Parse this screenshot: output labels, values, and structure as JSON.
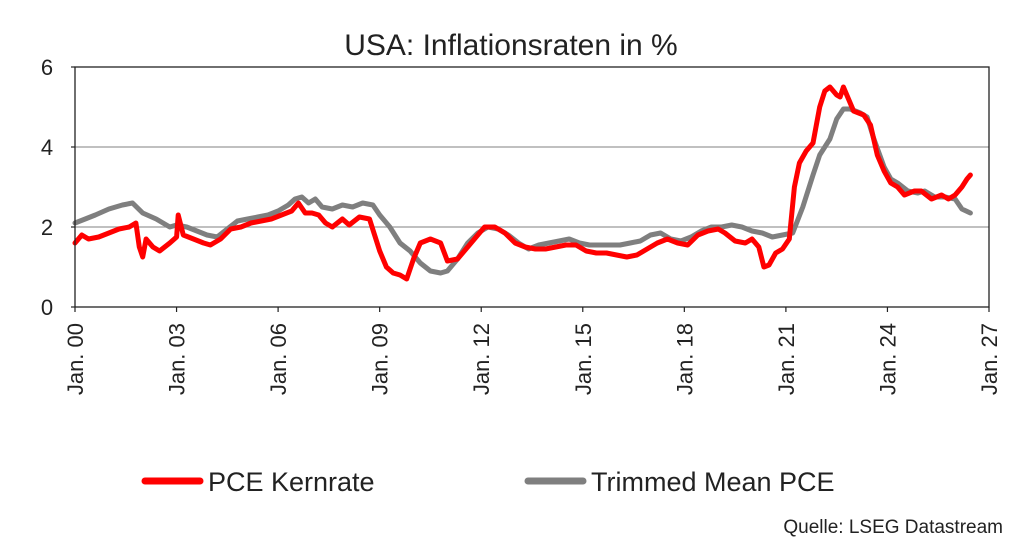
{
  "chart_data": {
    "type": "line",
    "title": "USA: Inflationsraten in %",
    "source": "Quelle: LSEG Datastream",
    "xlabel": "",
    "ylabel": "",
    "ylim": [
      0,
      6
    ],
    "y_ticks": [
      0,
      2,
      4,
      6
    ],
    "xlim": [
      2000.0,
      2027.0
    ],
    "x_ticks": [
      {
        "value": 2000,
        "label": "Jan. 00"
      },
      {
        "value": 2003,
        "label": "Jan. 03"
      },
      {
        "value": 2006,
        "label": "Jan. 06"
      },
      {
        "value": 2009,
        "label": "Jan. 09"
      },
      {
        "value": 2012,
        "label": "Jan. 12"
      },
      {
        "value": 2015,
        "label": "Jan. 15"
      },
      {
        "value": 2018,
        "label": "Jan. 18"
      },
      {
        "value": 2021,
        "label": "Jan. 21"
      },
      {
        "value": 2024,
        "label": "Jan. 24"
      },
      {
        "value": 2027,
        "label": "Jan. 27"
      }
    ],
    "grid": true,
    "legend_position": "bottom",
    "series": [
      {
        "name": "PCE Kernrate",
        "color": "#ff0000",
        "points": [
          [
            2000.0,
            1.6
          ],
          [
            2000.2,
            1.8
          ],
          [
            2000.4,
            1.7
          ],
          [
            2000.7,
            1.75
          ],
          [
            2001.0,
            1.85
          ],
          [
            2001.3,
            1.95
          ],
          [
            2001.6,
            2.0
          ],
          [
            2001.8,
            2.1
          ],
          [
            2001.9,
            1.5
          ],
          [
            2002.0,
            1.25
          ],
          [
            2002.1,
            1.7
          ],
          [
            2002.3,
            1.5
          ],
          [
            2002.5,
            1.4
          ],
          [
            2002.8,
            1.6
          ],
          [
            2003.0,
            1.75
          ],
          [
            2003.05,
            2.3
          ],
          [
            2003.2,
            1.8
          ],
          [
            2003.5,
            1.7
          ],
          [
            2003.8,
            1.6
          ],
          [
            2004.0,
            1.55
          ],
          [
            2004.3,
            1.7
          ],
          [
            2004.6,
            1.95
          ],
          [
            2004.9,
            2.0
          ],
          [
            2005.2,
            2.1
          ],
          [
            2005.5,
            2.15
          ],
          [
            2005.8,
            2.2
          ],
          [
            2006.1,
            2.3
          ],
          [
            2006.4,
            2.4
          ],
          [
            2006.6,
            2.6
          ],
          [
            2006.8,
            2.35
          ],
          [
            2007.0,
            2.35
          ],
          [
            2007.2,
            2.3
          ],
          [
            2007.4,
            2.1
          ],
          [
            2007.6,
            2.0
          ],
          [
            2007.9,
            2.2
          ],
          [
            2008.1,
            2.05
          ],
          [
            2008.4,
            2.25
          ],
          [
            2008.7,
            2.2
          ],
          [
            2008.85,
            1.8
          ],
          [
            2009.0,
            1.4
          ],
          [
            2009.2,
            1.0
          ],
          [
            2009.4,
            0.85
          ],
          [
            2009.6,
            0.8
          ],
          [
            2009.8,
            0.7
          ],
          [
            2010.0,
            1.2
          ],
          [
            2010.2,
            1.6
          ],
          [
            2010.5,
            1.7
          ],
          [
            2010.8,
            1.6
          ],
          [
            2011.0,
            1.15
          ],
          [
            2011.3,
            1.2
          ],
          [
            2011.6,
            1.5
          ],
          [
            2011.9,
            1.8
          ],
          [
            2012.1,
            2.0
          ],
          [
            2012.4,
            2.0
          ],
          [
            2012.7,
            1.85
          ],
          [
            2013.0,
            1.6
          ],
          [
            2013.3,
            1.5
          ],
          [
            2013.6,
            1.45
          ],
          [
            2013.9,
            1.45
          ],
          [
            2014.2,
            1.5
          ],
          [
            2014.5,
            1.55
          ],
          [
            2014.8,
            1.55
          ],
          [
            2015.1,
            1.4
          ],
          [
            2015.4,
            1.35
          ],
          [
            2015.7,
            1.35
          ],
          [
            2016.0,
            1.3
          ],
          [
            2016.3,
            1.25
          ],
          [
            2016.6,
            1.3
          ],
          [
            2016.9,
            1.45
          ],
          [
            2017.2,
            1.6
          ],
          [
            2017.5,
            1.7
          ],
          [
            2017.8,
            1.6
          ],
          [
            2018.1,
            1.55
          ],
          [
            2018.4,
            1.8
          ],
          [
            2018.7,
            1.9
          ],
          [
            2019.0,
            1.95
          ],
          [
            2019.2,
            1.85
          ],
          [
            2019.5,
            1.65
          ],
          [
            2019.8,
            1.6
          ],
          [
            2020.0,
            1.7
          ],
          [
            2020.2,
            1.5
          ],
          [
            2020.35,
            1.0
          ],
          [
            2020.5,
            1.05
          ],
          [
            2020.7,
            1.35
          ],
          [
            2020.9,
            1.45
          ],
          [
            2021.1,
            1.7
          ],
          [
            2021.25,
            3.0
          ],
          [
            2021.4,
            3.6
          ],
          [
            2021.6,
            3.9
          ],
          [
            2021.8,
            4.1
          ],
          [
            2022.0,
            5.0
          ],
          [
            2022.15,
            5.4
          ],
          [
            2022.3,
            5.5
          ],
          [
            2022.5,
            5.3
          ],
          [
            2022.6,
            5.25
          ],
          [
            2022.7,
            5.5
          ],
          [
            2022.85,
            5.2
          ],
          [
            2023.0,
            4.9
          ],
          [
            2023.3,
            4.8
          ],
          [
            2023.5,
            4.55
          ],
          [
            2023.7,
            3.8
          ],
          [
            2023.9,
            3.4
          ],
          [
            2024.1,
            3.1
          ],
          [
            2024.3,
            3.0
          ],
          [
            2024.5,
            2.8
          ],
          [
            2024.8,
            2.9
          ],
          [
            2025.0,
            2.9
          ],
          [
            2025.3,
            2.7
          ],
          [
            2025.6,
            2.8
          ],
          [
            2025.8,
            2.7
          ],
          [
            2026.0,
            2.8
          ],
          [
            2026.2,
            3.0
          ],
          [
            2026.35,
            3.2
          ],
          [
            2026.45,
            3.3
          ]
        ]
      },
      {
        "name": "Trimmed Mean PCE",
        "color": "#7f7f7f",
        "points": [
          [
            2000.0,
            2.1
          ],
          [
            2000.3,
            2.2
          ],
          [
            2000.6,
            2.3
          ],
          [
            2001.0,
            2.45
          ],
          [
            2001.4,
            2.55
          ],
          [
            2001.7,
            2.6
          ],
          [
            2002.0,
            2.35
          ],
          [
            2002.4,
            2.2
          ],
          [
            2002.8,
            2.0
          ],
          [
            2003.0,
            2.05
          ],
          [
            2003.3,
            2.0
          ],
          [
            2003.6,
            1.9
          ],
          [
            2003.9,
            1.8
          ],
          [
            2004.2,
            1.75
          ],
          [
            2004.5,
            1.95
          ],
          [
            2004.8,
            2.15
          ],
          [
            2005.1,
            2.2
          ],
          [
            2005.4,
            2.25
          ],
          [
            2005.7,
            2.3
          ],
          [
            2006.0,
            2.4
          ],
          [
            2006.3,
            2.55
          ],
          [
            2006.5,
            2.7
          ],
          [
            2006.7,
            2.75
          ],
          [
            2006.9,
            2.6
          ],
          [
            2007.1,
            2.7
          ],
          [
            2007.3,
            2.5
          ],
          [
            2007.6,
            2.45
          ],
          [
            2007.9,
            2.55
          ],
          [
            2008.2,
            2.5
          ],
          [
            2008.5,
            2.6
          ],
          [
            2008.8,
            2.55
          ],
          [
            2009.0,
            2.3
          ],
          [
            2009.3,
            2.0
          ],
          [
            2009.6,
            1.6
          ],
          [
            2009.9,
            1.4
          ],
          [
            2010.2,
            1.1
          ],
          [
            2010.5,
            0.9
          ],
          [
            2010.8,
            0.85
          ],
          [
            2011.0,
            0.9
          ],
          [
            2011.3,
            1.2
          ],
          [
            2011.6,
            1.6
          ],
          [
            2011.9,
            1.85
          ],
          [
            2012.2,
            2.0
          ],
          [
            2012.5,
            1.95
          ],
          [
            2012.8,
            1.8
          ],
          [
            2013.1,
            1.6
          ],
          [
            2013.4,
            1.45
          ],
          [
            2013.7,
            1.55
          ],
          [
            2014.0,
            1.6
          ],
          [
            2014.3,
            1.65
          ],
          [
            2014.6,
            1.7
          ],
          [
            2014.9,
            1.6
          ],
          [
            2015.2,
            1.55
          ],
          [
            2015.5,
            1.55
          ],
          [
            2015.8,
            1.55
          ],
          [
            2016.1,
            1.55
          ],
          [
            2016.4,
            1.6
          ],
          [
            2016.7,
            1.65
          ],
          [
            2017.0,
            1.8
          ],
          [
            2017.3,
            1.85
          ],
          [
            2017.6,
            1.7
          ],
          [
            2017.9,
            1.65
          ],
          [
            2018.2,
            1.75
          ],
          [
            2018.5,
            1.9
          ],
          [
            2018.8,
            2.0
          ],
          [
            2019.1,
            2.0
          ],
          [
            2019.4,
            2.05
          ],
          [
            2019.7,
            2.0
          ],
          [
            2020.0,
            1.9
          ],
          [
            2020.3,
            1.85
          ],
          [
            2020.6,
            1.75
          ],
          [
            2020.9,
            1.8
          ],
          [
            2021.2,
            1.85
          ],
          [
            2021.5,
            2.5
          ],
          [
            2021.8,
            3.3
          ],
          [
            2022.0,
            3.8
          ],
          [
            2022.3,
            4.2
          ],
          [
            2022.5,
            4.7
          ],
          [
            2022.7,
            4.95
          ],
          [
            2022.9,
            4.95
          ],
          [
            2023.2,
            4.85
          ],
          [
            2023.4,
            4.75
          ],
          [
            2023.6,
            4.2
          ],
          [
            2023.9,
            3.5
          ],
          [
            2024.1,
            3.2
          ],
          [
            2024.3,
            3.1
          ],
          [
            2024.6,
            2.9
          ],
          [
            2024.9,
            2.85
          ],
          [
            2025.1,
            2.9
          ],
          [
            2025.4,
            2.75
          ],
          [
            2025.7,
            2.75
          ],
          [
            2026.0,
            2.7
          ],
          [
            2026.2,
            2.45
          ],
          [
            2026.45,
            2.35
          ]
        ]
      }
    ]
  }
}
